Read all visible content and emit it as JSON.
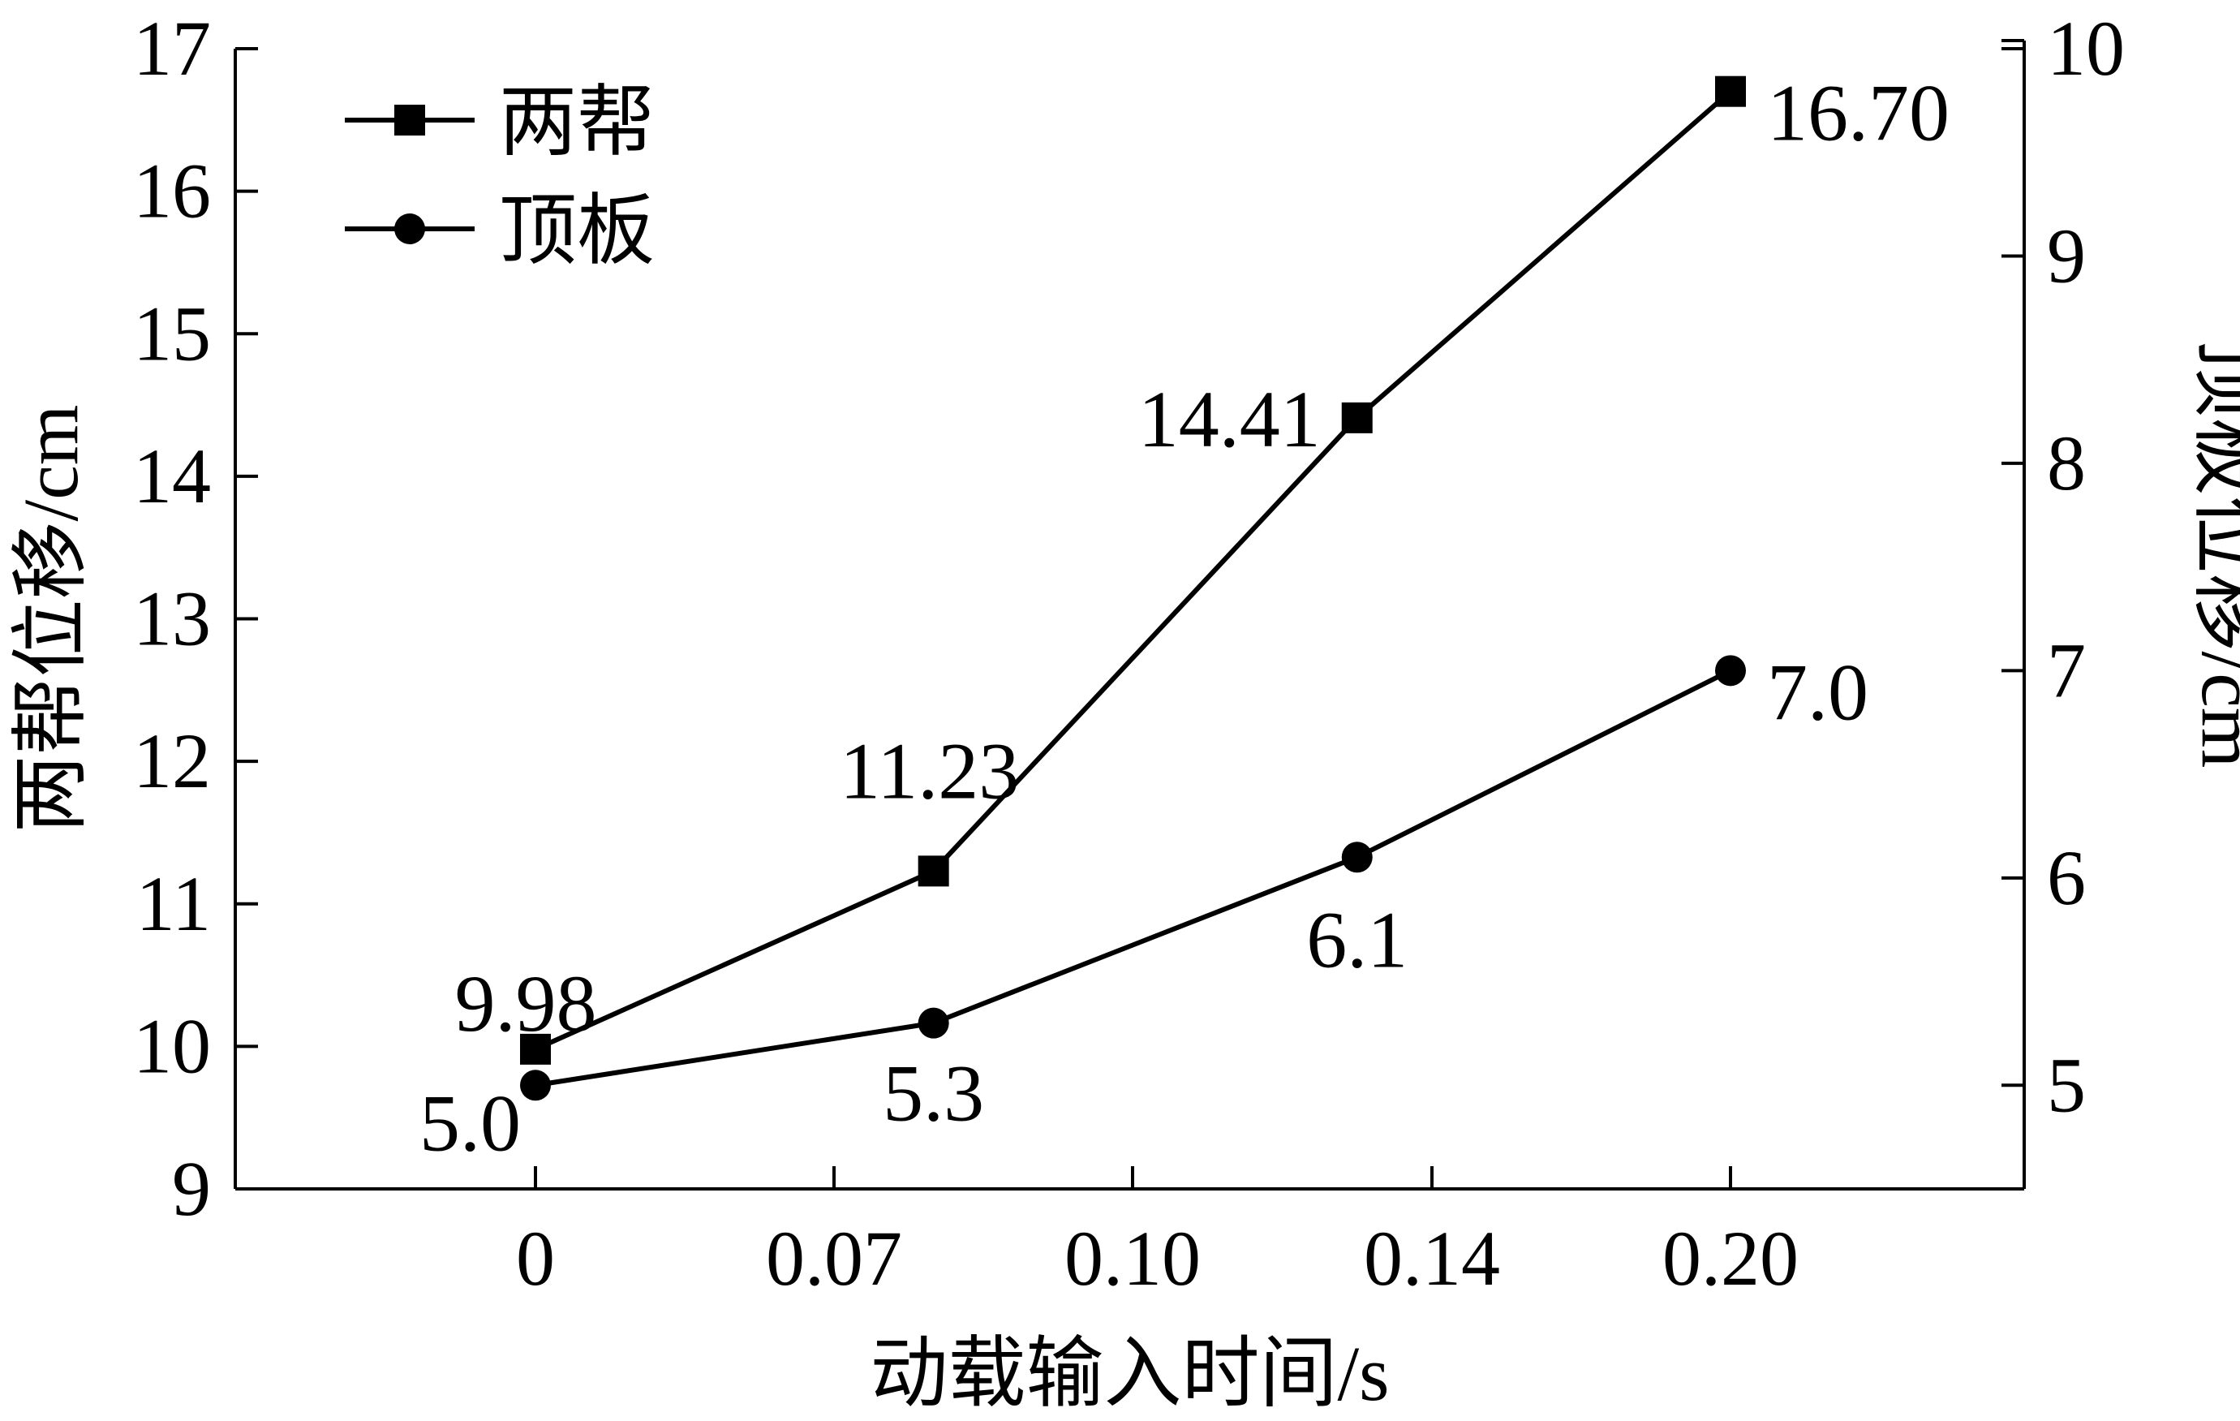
{
  "chart_data": {
    "type": "line",
    "xlabel": "动载输入时间/s",
    "ylabel_left": "两帮位移/cm",
    "ylabel_right": "顶板位移/cm",
    "categories": [
      "0",
      "0.07",
      "0.10",
      "0.14",
      "0.20"
    ],
    "x_tick_labels": [
      "0",
      "0.07",
      "0.10",
      "0.14",
      "0.20"
    ],
    "ylim_left": [
      9,
      17
    ],
    "ylim_right": [
      4.5,
      10
    ],
    "yticks_left": [
      "9",
      "10",
      "11",
      "12",
      "13",
      "14",
      "15",
      "16",
      "17"
    ],
    "yticks_right": [
      "5",
      "6",
      "7",
      "8",
      "9",
      "10"
    ],
    "grid": false,
    "legend_position": "top-left",
    "series": [
      {
        "name": "两帮",
        "axis": "left",
        "marker": "square",
        "x": [
          0,
          0.08,
          0.13,
          0.2
        ],
        "values": [
          9.98,
          11.23,
          14.41,
          16.7
        ],
        "labels": [
          "9.98",
          "11.23",
          "14.41",
          "16.70"
        ]
      },
      {
        "name": "顶板",
        "axis": "right",
        "marker": "circle",
        "x": [
          0,
          0.08,
          0.13,
          0.2
        ],
        "values": [
          5.0,
          5.3,
          6.1,
          7.0
        ],
        "labels": [
          "5.0",
          "5.3",
          "6.1",
          "7.0"
        ]
      }
    ],
    "colors": {
      "line": "#000000",
      "background": "#ffffff"
    }
  }
}
